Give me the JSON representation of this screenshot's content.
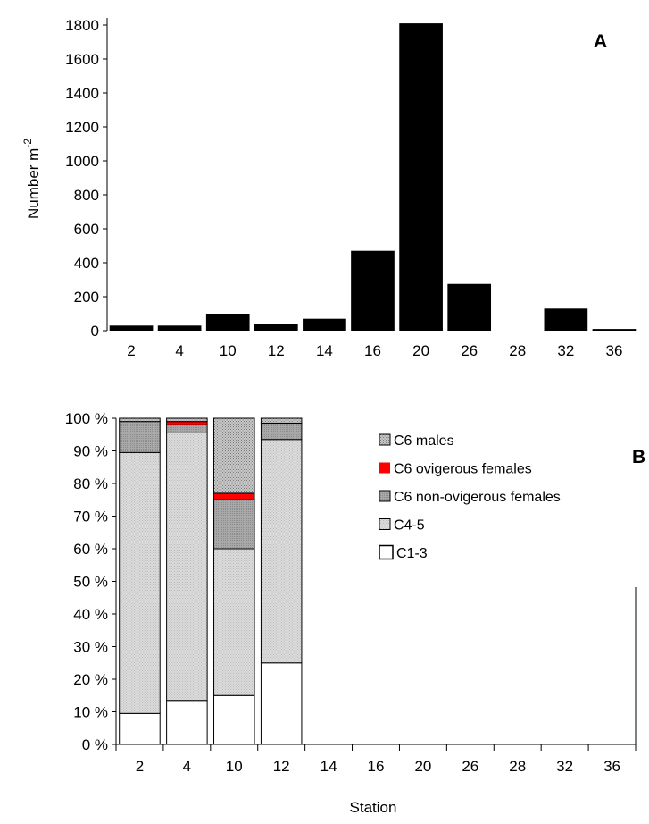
{
  "chart_data": [
    {
      "type": "bar",
      "panel_label": "A",
      "categories": [
        "2",
        "4",
        "10",
        "12",
        "14",
        "16",
        "20",
        "26",
        "28",
        "32",
        "36"
      ],
      "values": [
        30,
        30,
        100,
        40,
        70,
        470,
        1810,
        275,
        0,
        130,
        10
      ],
      "ylabel": "Number m",
      "ylabel_sup": "-2",
      "xlabel": "",
      "ylim": [
        0,
        1800
      ],
      "yticks": [
        0,
        200,
        400,
        600,
        800,
        1000,
        1200,
        1400,
        1600,
        1800
      ],
      "bar_color": "#000000"
    },
    {
      "type": "bar",
      "stacked": true,
      "panel_label": "B",
      "categories": [
        "2",
        "4",
        "10",
        "12",
        "14",
        "16",
        "20",
        "26",
        "28",
        "32",
        "36"
      ],
      "xlabel": "Station",
      "ylabel": "",
      "ylim": [
        0,
        100
      ],
      "ytick_labels": [
        "0 %",
        "10 %",
        "20 %",
        "30 %",
        "40 %",
        "50 %",
        "60 %",
        "70 %",
        "80 %",
        "90 %",
        "100 %"
      ],
      "legend_position": "right",
      "series": [
        {
          "name": "C1-3",
          "values": [
            9.5,
            13.5,
            15,
            25,
            0,
            0,
            0,
            0,
            0,
            0,
            0
          ],
          "color": "#ffffff"
        },
        {
          "name": "C4-5",
          "values": [
            80,
            82,
            45,
            68.5,
            0,
            0,
            0,
            0,
            0,
            0,
            0
          ],
          "color": "#dedede"
        },
        {
          "name": "C6 non-ovigerous females",
          "values": [
            9.5,
            2.5,
            15,
            5,
            0,
            0,
            0,
            0,
            0,
            0,
            0
          ],
          "color": "#a8a8a8"
        },
        {
          "name": "C6 ovigerous females",
          "values": [
            0,
            1,
            2,
            0,
            0,
            0,
            0,
            0,
            0,
            0,
            0
          ],
          "color": "#ff0000"
        },
        {
          "name": "C6 males",
          "values": [
            1,
            1,
            23,
            1.5,
            0,
            0,
            0,
            0,
            0,
            0,
            0
          ],
          "color": "#c4c4c4"
        }
      ]
    }
  ]
}
